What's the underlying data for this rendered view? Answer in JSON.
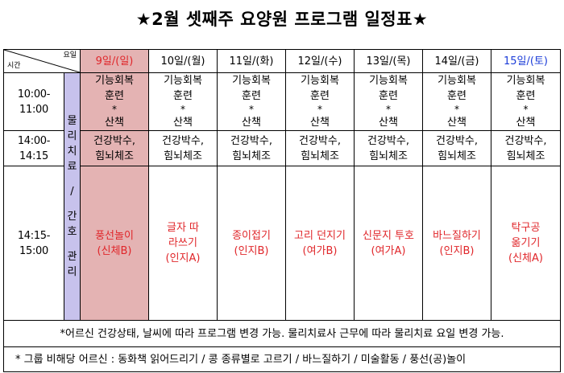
{
  "title": "★2월 셋째주 요양원 프로그램 일정표★",
  "corner": {
    "top": "요일",
    "bottom": "시간"
  },
  "days": [
    "9일/(일)",
    "10일/(월)",
    "11일/(화)",
    "12일/(수)",
    "13일/(목)",
    "14일/(금)",
    "15일/(토)"
  ],
  "category": [
    "물",
    "리",
    "치",
    "료",
    "/",
    "간",
    "호",
    "관",
    "리"
  ],
  "slots": [
    {
      "time": "10:00-11:00",
      "line1": "기능회복",
      "line2": "훈련",
      "star": "*",
      "line3": "산책"
    },
    {
      "time": "14:00-14:15",
      "line1": "건강박수,",
      "line2": "힘뇌체조"
    },
    {
      "time": "14:15-15:00"
    }
  ],
  "activities": [
    {
      "name": "풍선놀이",
      "sub": "(신체B)"
    },
    {
      "name": "글자 따라쓰기",
      "sub": "(인지A)"
    },
    {
      "name": "종이접기",
      "sub": "(인지B)"
    },
    {
      "name": "고리 던지기",
      "sub": "(여가B)"
    },
    {
      "name": "신문지 투호",
      "sub": "(여가A)"
    },
    {
      "name": "바느질하기",
      "sub": "(인지B)"
    },
    {
      "name": "탁구공 옮기기",
      "sub": "(신체A)"
    }
  ],
  "note": "*어르신 건강상태, 날씨에 따라 프로그램 변경 가능. 물리치료사 근무에 따라 물리치료 요일 변경 가능.",
  "footer": "* 그룹 비해당 어르신 : 동화책 읽어드리기 / 콩 종류별로 고르기 / 바느질하기 / 미술활동 / 풍선(공)놀이",
  "colors": {
    "sunday_bg": "#e4b3b3",
    "sunday_text": "#e0262a",
    "saturday_text": "#1b3cd8",
    "category_bg": "#c7c2ec",
    "activity_text": "#e0262a"
  }
}
